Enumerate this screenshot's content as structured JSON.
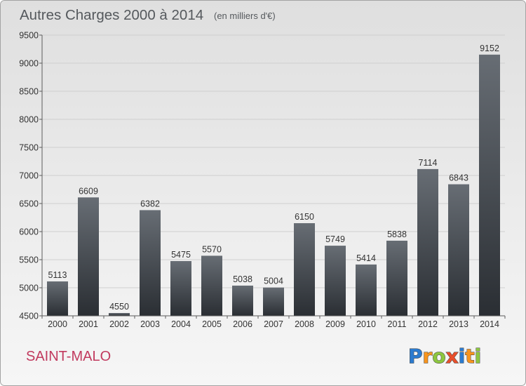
{
  "chart_data": {
    "type": "bar",
    "title": "Autres Charges 2000 à 2014",
    "subtitle": "(en milliers d'€)",
    "categories": [
      "2000",
      "2001",
      "2002",
      "2003",
      "2004",
      "2005",
      "2006",
      "2007",
      "2008",
      "2009",
      "2010",
      "2011",
      "2012",
      "2013",
      "2014"
    ],
    "values": [
      5113,
      6609,
      4550,
      6382,
      5475,
      5570,
      5038,
      5004,
      6150,
      5749,
      5414,
      5838,
      7114,
      6843,
      9152
    ],
    "ylim": [
      4500,
      9500
    ],
    "yticks": [
      4500,
      5000,
      5500,
      6000,
      6500,
      7000,
      7500,
      8000,
      8500,
      9000,
      9500
    ],
    "grid": true,
    "data_labels": true,
    "bar_gradient": {
      "top": "#676d74",
      "bottom": "#2a2e33"
    }
  },
  "location": {
    "name": "SAINT-MALO",
    "color": "#c13a5e"
  },
  "logo": {
    "text": "Proxiti",
    "letter_colors": [
      "#2b7bd0",
      "#f7941d",
      "#8dc63f",
      "#e94e2a",
      "#2b7bd0",
      "#f7941d",
      "#8dc63f"
    ]
  }
}
